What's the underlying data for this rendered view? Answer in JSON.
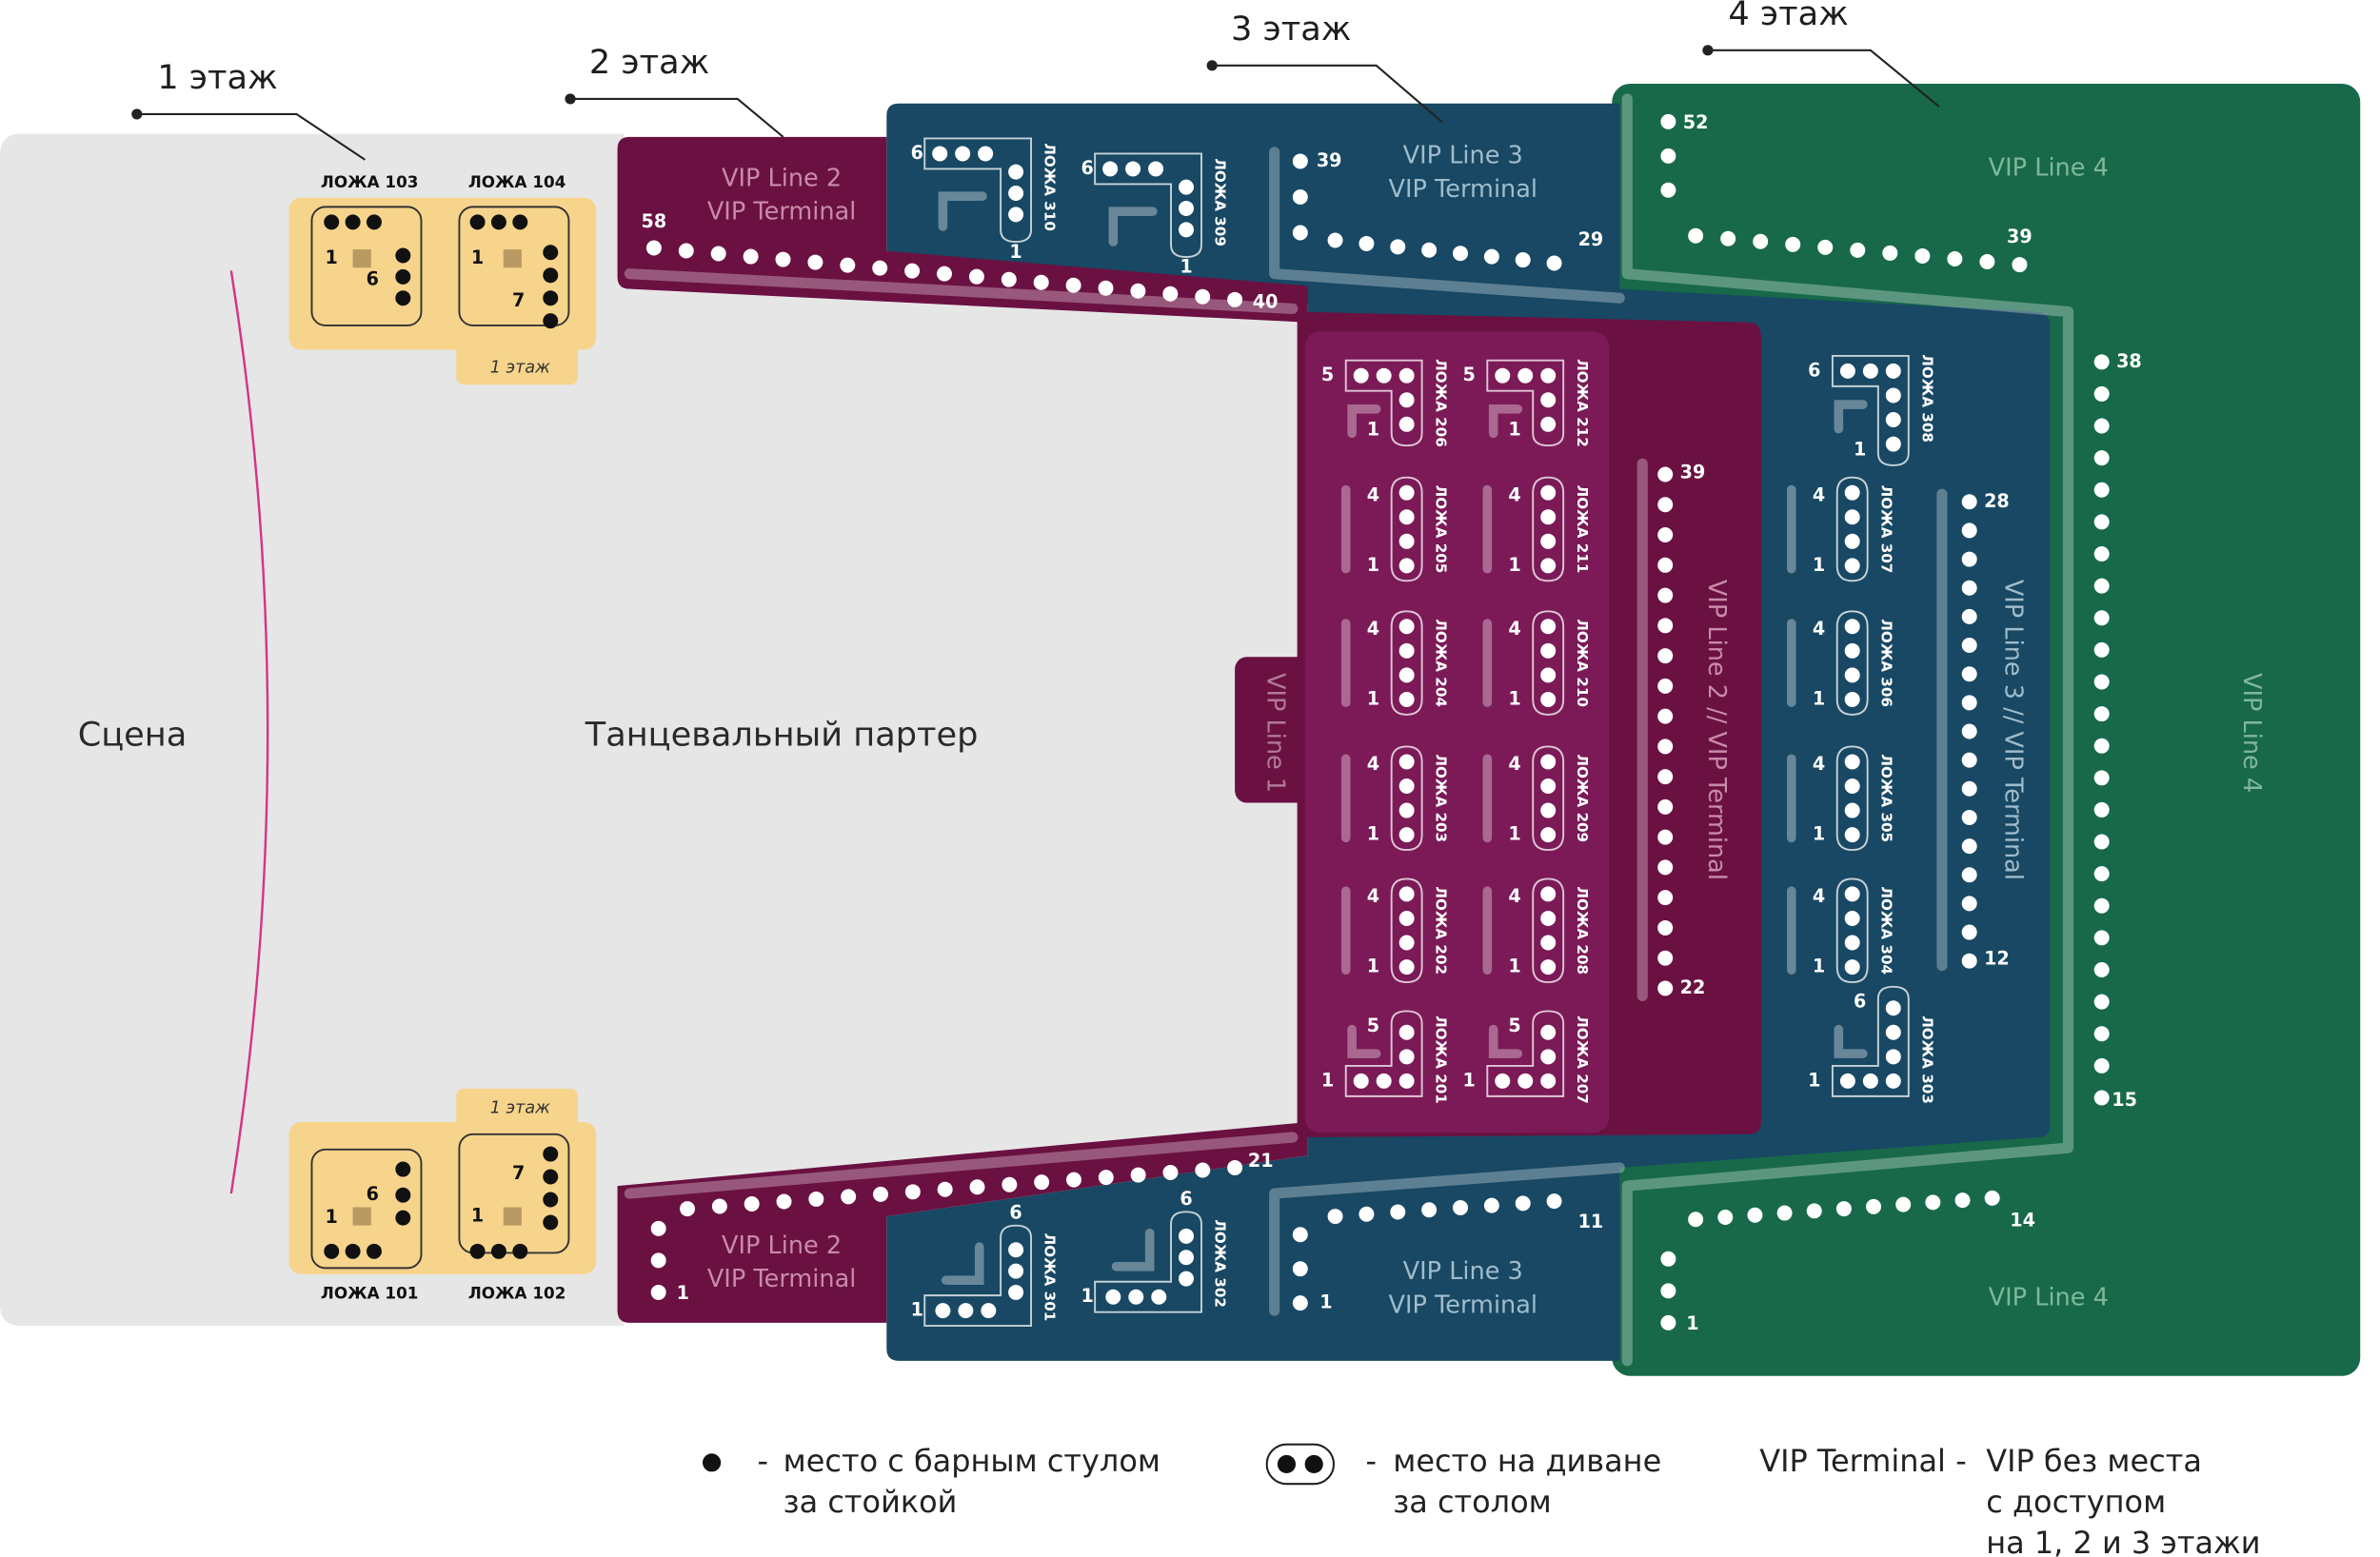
{
  "floors": [
    "1 этаж",
    "2 этаж",
    "3 этаж",
    "4 этаж"
  ],
  "stage": "Сцена",
  "dance_floor": "Танцевальный партер",
  "floor_tags": [
    "1 этаж",
    "1 этаж"
  ],
  "zone_labels": [
    "VIP Line 2",
    "VIP Terminal",
    "VIP Line 2",
    "VIP Terminal",
    "VIP Line 3",
    "VIP Terminal",
    "VIP Line 3",
    "VIP Terminal",
    "VIP Line 4",
    "VIP Line 4",
    "VIP Line 1",
    "VIP Line 2 // VIP Terminal",
    "VIP Line 3 // VIP Terminal",
    "VIP Line 4"
  ],
  "row_numbers": [
    "58",
    "40",
    "1",
    "21",
    "39",
    "29",
    "1",
    "11",
    "52",
    "39",
    "1",
    "14",
    "39",
    "22",
    "28",
    "12",
    "38",
    "15"
  ],
  "boxes": [
    {
      "label": "ЛОЖА 103",
      "numbers": [
        "1",
        "6"
      ]
    },
    {
      "label": "ЛОЖА 104",
      "numbers": [
        "1",
        "7"
      ]
    },
    {
      "label": "ЛОЖА 101",
      "numbers": [
        "6",
        "1"
      ]
    },
    {
      "label": "ЛОЖА 102",
      "numbers": [
        "7",
        "1"
      ]
    },
    {
      "label": "ЛОЖА 310",
      "numbers": [
        "6",
        "1"
      ]
    },
    {
      "label": "ЛОЖА 309",
      "numbers": [
        "6",
        "1"
      ]
    },
    {
      "label": "ЛОЖА 301",
      "numbers": [
        "6",
        "1"
      ]
    },
    {
      "label": "ЛОЖА 302",
      "numbers": [
        "6",
        "1"
      ]
    },
    {
      "label": "ЛОЖА 206",
      "numbers": [
        "5",
        "1"
      ]
    },
    {
      "label": "ЛОЖА 205",
      "numbers": [
        "4",
        "1"
      ]
    },
    {
      "label": "ЛОЖА 204",
      "numbers": [
        "4",
        "1"
      ]
    },
    {
      "label": "ЛОЖА 203",
      "numbers": [
        "4",
        "1"
      ]
    },
    {
      "label": "ЛОЖА 202",
      "numbers": [
        "4",
        "1"
      ]
    },
    {
      "label": "ЛОЖА 201",
      "numbers": [
        "5",
        "1"
      ]
    },
    {
      "label": "ЛОЖА 212",
      "numbers": [
        "5",
        "1"
      ]
    },
    {
      "label": "ЛОЖА 211",
      "numbers": [
        "4",
        "1"
      ]
    },
    {
      "label": "ЛОЖА 210",
      "numbers": [
        "4",
        "1"
      ]
    },
    {
      "label": "ЛОЖА 209",
      "numbers": [
        "4",
        "1"
      ]
    },
    {
      "label": "ЛОЖА 208",
      "numbers": [
        "4",
        "1"
      ]
    },
    {
      "label": "ЛОЖА 207",
      "numbers": [
        "5",
        "1"
      ]
    },
    {
      "label": "ЛОЖА 308",
      "numbers": [
        "6",
        "1"
      ]
    },
    {
      "label": "ЛОЖА 307",
      "numbers": [
        "4",
        "1"
      ]
    },
    {
      "label": "ЛОЖА 306",
      "numbers": [
        "4",
        "1"
      ]
    },
    {
      "label": "ЛОЖА 305",
      "numbers": [
        "4",
        "1"
      ]
    },
    {
      "label": "ЛОЖА 304",
      "numbers": [
        "4",
        "1"
      ]
    },
    {
      "label": "ЛОЖА 303",
      "numbers": [
        "6",
        "1"
      ]
    }
  ],
  "legend": [
    {
      "dash": "-",
      "lines": [
        "место с барным стулом",
        "за стойкой"
      ]
    },
    {
      "dash": "-",
      "lines": [
        "место на диване",
        "за столом"
      ]
    },
    {
      "term": "VIP Terminal",
      "dash": "-",
      "lines": [
        "VIP без места",
        "с доступом",
        "на 1, 2 и 3 этажи"
      ]
    }
  ]
}
